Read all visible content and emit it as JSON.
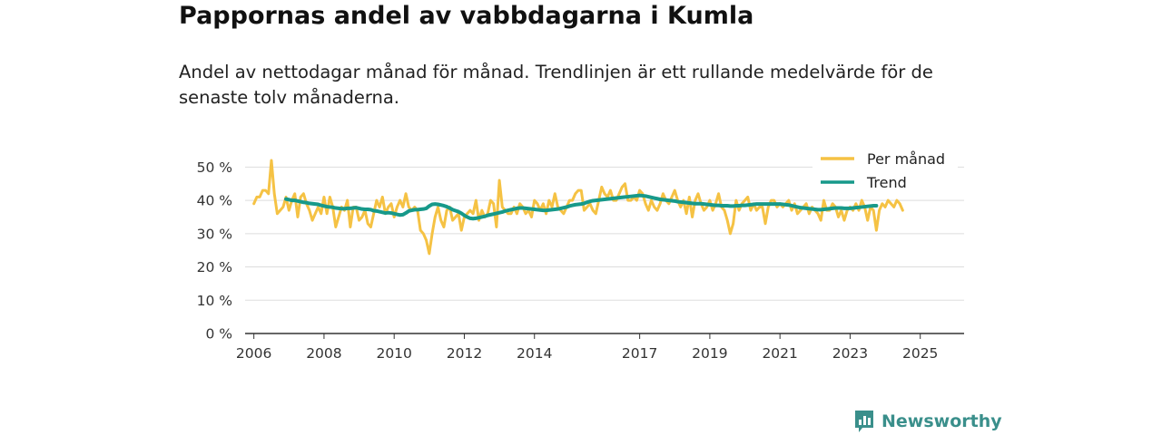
{
  "chart_data": {
    "type": "line",
    "title": "Pappornas andel av vabbdagarna i Kumla",
    "subtitle": "Andel av nettodagar månad för månad. Trendlinjen är ett rullande medelvärde för de senaste tolv månaderna.",
    "xlabel": "",
    "ylabel": "",
    "xlim": [
      2005.75,
      2026.25
    ],
    "ylim": [
      0,
      55
    ],
    "yticks": [
      0,
      10,
      20,
      30,
      40,
      50
    ],
    "ytick_labels": [
      "0 %",
      "10 %",
      "20 %",
      "30 %",
      "40 %",
      "50 %"
    ],
    "xticks": [
      2006,
      2008,
      2010,
      2012,
      2014,
      2017,
      2019,
      2021,
      2023,
      2025
    ],
    "xtick_labels": [
      "2006",
      "2008",
      "2010",
      "2012",
      "2014",
      "2017",
      "2019",
      "2021",
      "2023",
      "2025"
    ],
    "grid": true,
    "legend_position": "top-right",
    "series": [
      {
        "name": "Per månad",
        "color": "#f5c244",
        "x_start": 2006.0,
        "x_step": 0.08333,
        "values": [
          39,
          41,
          41,
          43,
          43,
          42,
          52,
          42,
          36,
          37,
          38,
          41,
          37,
          40,
          42,
          35,
          41,
          42,
          39,
          37,
          34,
          36,
          38,
          36,
          41,
          36,
          41,
          38,
          32,
          35,
          38,
          37,
          40,
          32,
          38,
          38,
          34,
          35,
          37,
          33,
          32,
          36,
          40,
          38,
          41,
          36,
          38,
          39,
          35,
          38,
          40,
          38,
          42,
          38,
          37,
          38,
          37,
          31,
          30,
          28,
          24,
          30,
          35,
          38,
          34,
          32,
          37,
          38,
          34,
          35,
          36,
          31,
          35,
          36,
          37,
          36,
          40,
          34,
          37,
          35,
          36,
          40,
          39,
          32,
          46,
          38,
          37,
          36,
          36,
          38,
          36,
          39,
          38,
          36,
          37,
          35,
          40,
          39,
          37,
          39,
          36,
          40,
          38,
          42,
          38,
          37,
          36,
          38,
          40,
          40,
          42,
          43,
          43,
          37,
          38,
          39,
          37,
          36,
          40,
          44,
          42,
          41,
          43,
          40,
          40,
          42,
          44,
          45,
          40,
          40,
          41,
          40,
          43,
          42,
          39,
          37,
          40,
          38,
          37,
          39,
          42,
          40,
          39,
          41,
          43,
          40,
          38,
          40,
          36,
          41,
          35,
          40,
          42,
          39,
          37,
          38,
          40,
          37,
          39,
          42,
          38,
          37,
          34,
          30,
          33,
          40,
          37,
          39,
          40,
          41,
          37,
          39,
          37,
          38,
          38,
          33,
          38,
          40,
          40,
          38,
          39,
          38,
          39,
          40,
          37,
          39,
          36,
          37,
          38,
          39,
          36,
          38,
          37,
          36,
          34,
          40,
          37,
          37,
          39,
          38,
          35,
          37,
          34,
          37,
          38,
          37,
          39,
          37,
          40,
          38,
          34,
          38,
          37,
          31,
          37,
          39,
          38,
          40,
          39,
          38,
          40,
          39,
          37
        ]
      },
      {
        "name": "Trend",
        "color": "#17998a",
        "x_start": 2006.9167,
        "x_step": 0.08333,
        "values": [
          40.4,
          40.2,
          40.0,
          40.0,
          39.8,
          39.6,
          39.4,
          39.3,
          39.1,
          39.0,
          38.9,
          38.8,
          38.5,
          38.3,
          38.1,
          38.0,
          37.9,
          37.7,
          37.6,
          37.5,
          37.5,
          37.6,
          37.6,
          37.7,
          37.8,
          37.6,
          37.4,
          37.3,
          37.3,
          37.2,
          36.9,
          36.8,
          36.6,
          36.4,
          36.2,
          36.3,
          36.2,
          36.0,
          35.8,
          35.6,
          35.7,
          36.2,
          36.8,
          37.0,
          37.2,
          37.2,
          37.3,
          37.4,
          37.6,
          38.3,
          38.8,
          38.9,
          38.8,
          38.6,
          38.4,
          38.1,
          37.7,
          37.2,
          36.9,
          36.6,
          36.1,
          35.5,
          35.0,
          34.6,
          34.5,
          34.6,
          34.8,
          35.0,
          35.2,
          35.5,
          35.7,
          35.9,
          36.1,
          36.3,
          36.5,
          36.8,
          37.0,
          37.2,
          37.4,
          37.6,
          37.7,
          37.7,
          37.6,
          37.5,
          37.4,
          37.3,
          37.2,
          37.1,
          37.0,
          37.0,
          37.1,
          37.2,
          37.3,
          37.4,
          37.6,
          37.8,
          38.0,
          38.3,
          38.5,
          38.7,
          38.8,
          38.9,
          39.1,
          39.4,
          39.7,
          39.9,
          40.0,
          40.1,
          40.2,
          40.3,
          40.4,
          40.5,
          40.6,
          40.7,
          40.8,
          40.9,
          41.0,
          41.1,
          41.2,
          41.3,
          41.4,
          41.5,
          41.4,
          41.3,
          41.1,
          40.9,
          40.7,
          40.5,
          40.3,
          40.2,
          40.1,
          40.0,
          39.9,
          39.8,
          39.6,
          39.5,
          39.4,
          39.3,
          39.2,
          39.1,
          39.0,
          39.0,
          39.0,
          38.9,
          38.8,
          38.7,
          38.6,
          38.5,
          38.5,
          38.4,
          38.4,
          38.4,
          38.3,
          38.3,
          38.4,
          38.4,
          38.5,
          38.5,
          38.6,
          38.7,
          38.8,
          38.9,
          38.9,
          38.9,
          38.9,
          38.9,
          38.9,
          38.9,
          38.9,
          38.9,
          38.8,
          38.7,
          38.6,
          38.4,
          38.2,
          38.0,
          37.8,
          37.7,
          37.6,
          37.5,
          37.4,
          37.3,
          37.2,
          37.2,
          37.3,
          37.4,
          37.5,
          37.6,
          37.7,
          37.7,
          37.7,
          37.6,
          37.6,
          37.6,
          37.7,
          37.8,
          37.9,
          38.0,
          38.1,
          38.2,
          38.3,
          38.4,
          38.4
        ]
      }
    ]
  },
  "branding": {
    "name": "Newsworthy"
  },
  "colors": {
    "per_month": "#f5c244",
    "trend": "#17998a",
    "brand": "#3a8f8b",
    "grid": "#dddddd",
    "axis": "#333333"
  }
}
